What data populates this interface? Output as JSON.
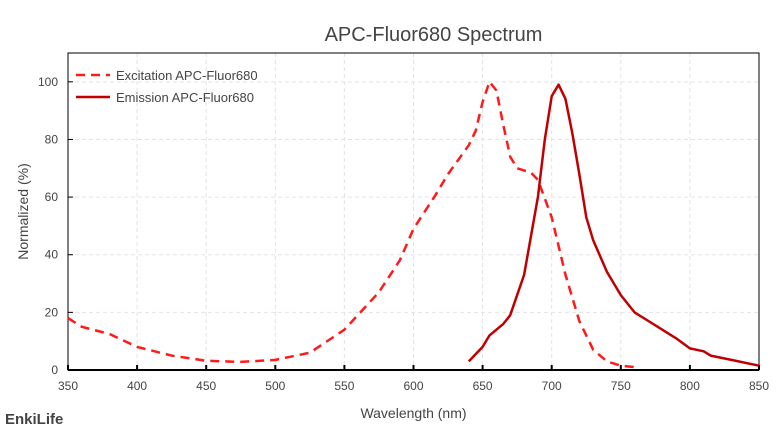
{
  "chart_data": {
    "type": "line",
    "title": "APC-Fluor680  Spectrum",
    "xlabel": "Wavelength (nm)",
    "ylabel": "Normalized (%)",
    "xlim": [
      350,
      850
    ],
    "ylim": [
      0,
      110
    ],
    "xticks": [
      350,
      400,
      450,
      500,
      550,
      600,
      650,
      700,
      750,
      800,
      850
    ],
    "yticks": [
      0,
      20,
      40,
      60,
      80,
      100
    ],
    "grid": true,
    "legend_position": "top-left",
    "watermark": "EnkiLife",
    "series": [
      {
        "name": "Excitation APC-Fluor680",
        "style": "dashed",
        "color": "#ff1a1a",
        "x": [
          350,
          360,
          380,
          400,
          425,
          450,
          475,
          500,
          525,
          550,
          575,
          590,
          600,
          615,
          625,
          640,
          645,
          650,
          655,
          660,
          665,
          670,
          675,
          685,
          690,
          700,
          705,
          710,
          720,
          730,
          740,
          750,
          760
        ],
        "y": [
          18,
          15,
          12.5,
          8,
          5,
          3.2,
          2.8,
          3.5,
          6,
          14,
          27,
          38,
          49,
          60,
          68,
          78,
          83,
          93,
          100,
          97,
          85,
          74,
          70,
          68.5,
          66,
          53,
          43,
          33,
          17,
          7,
          3,
          1.5,
          1
        ]
      },
      {
        "name": "Emission APC-Fluor680",
        "style": "solid",
        "color": "#c00000",
        "x": [
          640,
          650,
          655,
          665,
          670,
          680,
          690,
          695,
          700,
          705,
          710,
          715,
          720,
          725,
          730,
          740,
          750,
          760,
          770,
          780,
          790,
          800,
          810,
          815,
          830,
          850
        ],
        "y": [
          3,
          8,
          12,
          16,
          19,
          33,
          60,
          80,
          95,
          99,
          94,
          82,
          68,
          53,
          45,
          34,
          26,
          20,
          17,
          14,
          11,
          7.5,
          6.5,
          5,
          3.5,
          1.5
        ]
      }
    ]
  }
}
